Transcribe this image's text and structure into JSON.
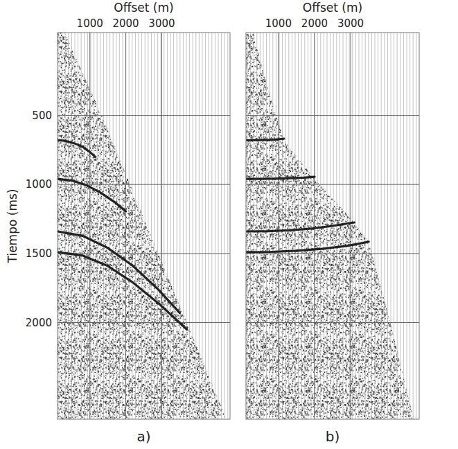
{
  "chart_data": [
    {
      "type": "line",
      "title": "a)",
      "x_label": "Offset (m)",
      "y_label": "Tiempo (ms)",
      "xlim": [
        100,
        4900
      ],
      "xticks": [
        1000,
        2000,
        3000
      ],
      "ylim": [
        -100,
        2700
      ],
      "yticks": [
        500,
        1000,
        1500,
        2000
      ],
      "grid": true,
      "color": "#222222",
      "series": [
        {
          "x": [
            100,
            300,
            550,
            800,
            1000,
            1150
          ],
          "values": [
            680,
            684,
            700,
            728,
            765,
            800
          ]
        },
        {
          "x": [
            100,
            500,
            900,
            1300,
            1700,
            2000
          ],
          "values": [
            960,
            972,
            1005,
            1060,
            1130,
            1195
          ]
        },
        {
          "x": [
            100,
            800,
            1500,
            2200,
            2900,
            3500
          ],
          "values": [
            1340,
            1372,
            1460,
            1590,
            1760,
            1930
          ]
        },
        {
          "x": [
            100,
            800,
            1500,
            2200,
            2950,
            3700
          ],
          "values": [
            1490,
            1515,
            1590,
            1710,
            1870,
            2050
          ]
        }
      ],
      "mute_boundary": {
        "offsets": [
          300,
          1330,
          2120,
          2900,
          3700,
          4800
        ],
        "times": [
          -100,
          500,
          1000,
          1500,
          2000,
          2700
        ]
      }
    },
    {
      "type": "line",
      "title": "b)",
      "x_label": "Offset (m)",
      "xlim": [
        100,
        4900
      ],
      "xticks": [
        1000,
        2000,
        3000
      ],
      "ylim": [
        -100,
        2700
      ],
      "yticks": [
        500,
        1000,
        1500,
        2000
      ],
      "grid": true,
      "tick_labels": "x",
      "color": "#222222",
      "series": [
        {
          "x": [
            100,
            300,
            550,
            800,
            1000,
            1150
          ],
          "values": [
            680,
            680,
            679,
            677,
            673,
            668
          ]
        },
        {
          "x": [
            100,
            500,
            900,
            1300,
            1700,
            2000
          ],
          "values": [
            960,
            960,
            958,
            955,
            950,
            944
          ]
        },
        {
          "x": [
            100,
            700,
            1300,
            1900,
            2500,
            3100
          ],
          "values": [
            1340,
            1338,
            1332,
            1320,
            1300,
            1275
          ]
        },
        {
          "x": [
            100,
            800,
            1500,
            2200,
            2900,
            3500
          ],
          "values": [
            1490,
            1488,
            1480,
            1466,
            1445,
            1415
          ]
        }
      ],
      "mute_boundary": {
        "offsets": [
          300,
          700,
          1150,
          2000,
          3100,
          3500,
          4100,
          4750
        ],
        "times": [
          -100,
          300,
          680,
          960,
          1275,
          1415,
          2000,
          2700
        ]
      }
    }
  ]
}
